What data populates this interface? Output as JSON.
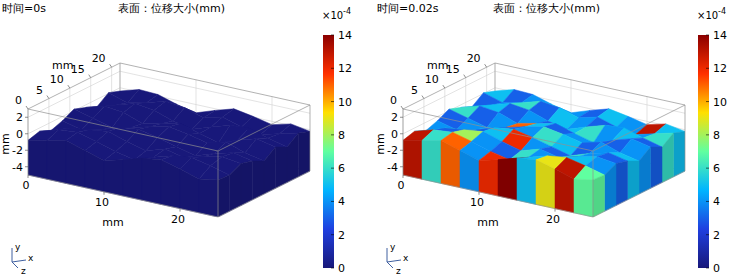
{
  "chart_data": [
    {
      "type": "surface",
      "subtitle": "时间=0s",
      "title": "表面：位移大小(mm)",
      "x_label": "mm",
      "y_label": "mm",
      "z_label": "mm",
      "xlim": [
        0,
        25
      ],
      "xticks": [
        0,
        10,
        20
      ],
      "ylim": [
        -5,
        3
      ],
      "yticks": [
        -4,
        -2,
        0,
        2
      ],
      "zlim": [
        0,
        22
      ],
      "zticks": [
        0,
        5,
        10,
        15,
        20
      ],
      "grid": true,
      "x": [
        0,
        2.5,
        5,
        7.5,
        10,
        12.5,
        15,
        17.5,
        20,
        22.5,
        25
      ],
      "z": [
        0,
        2.75,
        5.5,
        8.25,
        11,
        13.75,
        16.5,
        19.25,
        22
      ],
      "height": [
        [
          -0.8,
          -0.3,
          0.2,
          -0.5,
          -1.2,
          -0.6,
          0.1,
          0.4,
          -0.2,
          -0.9,
          -0.5
        ],
        [
          -0.4,
          0.3,
          0.5,
          -0.1,
          -0.8,
          -1.3,
          -0.5,
          0.2,
          0.5,
          0.0,
          -0.6
        ],
        [
          -1.0,
          -0.2,
          0.1,
          0.4,
          -0.3,
          -0.9,
          -0.2,
          -0.7,
          -0.1,
          0.4,
          0.1
        ],
        [
          -0.5,
          -1.1,
          -0.6,
          0.2,
          0.5,
          0.0,
          -0.6,
          -1.2,
          -0.4,
          0.2,
          -0.3
        ],
        [
          0.2,
          -0.4,
          -1.0,
          -0.5,
          0.1,
          0.6,
          0.2,
          -0.3,
          0.3,
          -0.5,
          -1.0
        ],
        [
          -0.3,
          0.4,
          0.1,
          -0.7,
          -0.2,
          0.3,
          -0.4,
          -1.0,
          -0.2,
          0.5,
          0.0
        ],
        [
          -0.9,
          -0.2,
          0.5,
          0.2,
          -0.6,
          -1.1,
          -0.3,
          0.4,
          0.6,
          -0.1,
          -0.7
        ],
        [
          0.1,
          -0.6,
          -0.1,
          0.6,
          0.3,
          -0.4,
          0.2,
          -0.5,
          -0.9,
          -0.3,
          0.3
        ],
        [
          -0.4,
          0.3,
          0.2,
          -0.5,
          -1.0,
          -0.2,
          0.5,
          0.1,
          -0.4,
          0.2,
          -0.2
        ]
      ],
      "displacement": [
        [
          0,
          0,
          0,
          0,
          0,
          0,
          0,
          0,
          0,
          0
        ],
        [
          0,
          0,
          0,
          0,
          0,
          0,
          0,
          0,
          0,
          0
        ],
        [
          0,
          0,
          0,
          0,
          0,
          0,
          0,
          0,
          0,
          0
        ],
        [
          0,
          0,
          0,
          0,
          0,
          0,
          0,
          0,
          0,
          0
        ],
        [
          0,
          0,
          0,
          0,
          0,
          0,
          0,
          0,
          0,
          0
        ],
        [
          0,
          0,
          0,
          0,
          0,
          0,
          0,
          0,
          0,
          0
        ],
        [
          0,
          0,
          0,
          0,
          0,
          0,
          0,
          0,
          0,
          0
        ],
        [
          0,
          0,
          0,
          0,
          0,
          0,
          0,
          0,
          0,
          0
        ]
      ],
      "colorbar": {
        "range": [
          0,
          14
        ],
        "ticks": [
          0,
          2,
          4,
          6,
          8,
          10,
          12,
          14
        ],
        "label": "×10",
        "label_exponent": "-4"
      },
      "triad_labels": [
        "y",
        "x",
        "z"
      ]
    },
    {
      "type": "surface",
      "subtitle": "时间=0.02s",
      "title": "表面：位移大小(mm)",
      "x_label": "mm",
      "y_label": "mm",
      "z_label": "mm",
      "xlim": [
        0,
        25
      ],
      "xticks": [
        0,
        10,
        20
      ],
      "ylim": [
        -5,
        3
      ],
      "yticks": [
        -4,
        -2,
        0,
        2
      ],
      "zlim": [
        0,
        22
      ],
      "zticks": [
        0,
        5,
        10,
        15,
        20
      ],
      "grid": true,
      "x": [
        0,
        2.5,
        5,
        7.5,
        10,
        12.5,
        15,
        17.5,
        20,
        22.5,
        25
      ],
      "z": [
        0,
        2.75,
        5.5,
        8.25,
        11,
        13.75,
        16.5,
        19.25,
        22
      ],
      "height": [
        [
          -0.8,
          -0.3,
          0.2,
          -0.5,
          -1.2,
          -0.6,
          0.1,
          0.4,
          -0.2,
          -0.9,
          -0.5
        ],
        [
          -0.4,
          0.3,
          0.5,
          -0.1,
          -0.8,
          -1.3,
          -0.5,
          0.2,
          0.5,
          0.0,
          -0.6
        ],
        [
          -1.0,
          -0.2,
          0.1,
          0.4,
          -0.3,
          -0.9,
          -0.2,
          -0.7,
          -0.1,
          0.4,
          0.1
        ],
        [
          -0.5,
          -1.1,
          -0.6,
          0.2,
          0.5,
          0.0,
          -0.6,
          -1.2,
          -0.4,
          0.2,
          -0.3
        ],
        [
          0.2,
          -0.4,
          -1.0,
          -0.5,
          0.1,
          0.6,
          0.2,
          -0.3,
          0.3,
          -0.5,
          -1.0
        ],
        [
          -0.3,
          0.4,
          0.1,
          -0.7,
          -0.2,
          0.3,
          -0.4,
          -1.0,
          -0.2,
          0.5,
          0.0
        ],
        [
          -0.9,
          -0.2,
          0.5,
          0.2,
          -0.6,
          -1.1,
          -0.3,
          0.4,
          0.6,
          -0.1,
          -0.7
        ],
        [
          0.1,
          -0.6,
          -0.1,
          0.6,
          0.3,
          -0.4,
          0.2,
          -0.5,
          -0.9,
          -0.3,
          0.3
        ],
        [
          -0.4,
          0.3,
          0.2,
          -0.5,
          -1.0,
          -0.2,
          0.5,
          0.1,
          -0.4,
          0.2,
          -0.2
        ]
      ],
      "displacement": [
        [
          13,
          6,
          11,
          4,
          12,
          14,
          5,
          9,
          13,
          7
        ],
        [
          5,
          3,
          8,
          4,
          3,
          6,
          4,
          3,
          5,
          4
        ],
        [
          4,
          6,
          3,
          5,
          12,
          4,
          3,
          6,
          4,
          3
        ],
        [
          3,
          4,
          5,
          3,
          4,
          6,
          5,
          3,
          4,
          5
        ],
        [
          6,
          3,
          4,
          11,
          5,
          3,
          4,
          5,
          3,
          4
        ],
        [
          4,
          5,
          3,
          4,
          3,
          5,
          6,
          4,
          5,
          3
        ],
        [
          3,
          4,
          6,
          3,
          5,
          4,
          3,
          5,
          4,
          6
        ],
        [
          5,
          3,
          4,
          5,
          4,
          3,
          5,
          4,
          13,
          5
        ]
      ],
      "colorbar": {
        "range": [
          0,
          14
        ],
        "ticks": [
          0,
          2,
          4,
          6,
          8,
          10,
          12,
          14
        ],
        "label": "×10",
        "label_exponent": "-4"
      },
      "triad_labels": [
        "y",
        "x",
        "z"
      ]
    }
  ]
}
